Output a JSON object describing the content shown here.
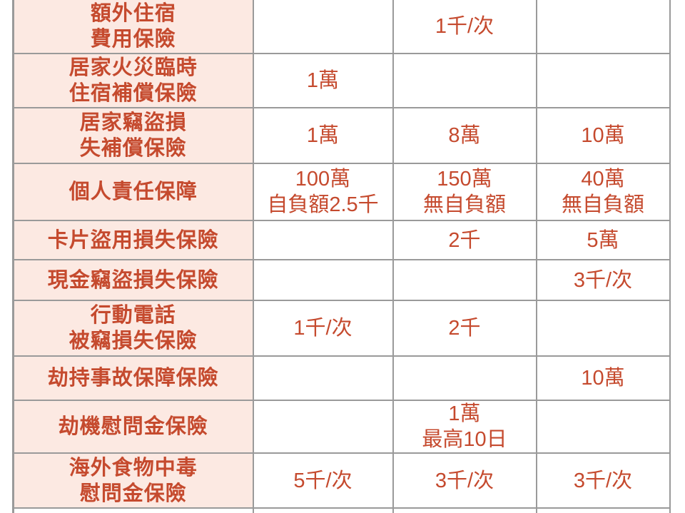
{
  "palette": {
    "label_cell_bg": "#fce9e2",
    "text_color": "#c54a2e",
    "border_color": "#9a9a9a",
    "page_bg": "#ffffff"
  },
  "table": {
    "rows": [
      {
        "label_lines": [
          "額外住宿",
          "費用保險"
        ],
        "values": [
          [],
          [
            "1千/次"
          ],
          []
        ]
      },
      {
        "label_lines": [
          "居家火災臨時",
          "住宿補償保險"
        ],
        "values": [
          [
            "1萬"
          ],
          [],
          []
        ]
      },
      {
        "label_lines": [
          "居家竊盜損",
          "失補償保險"
        ],
        "values": [
          [
            "1萬"
          ],
          [
            "8萬"
          ],
          [
            "10萬"
          ]
        ]
      },
      {
        "label_lines": [
          "個人責任保障"
        ],
        "values": [
          [
            "100萬",
            "自負額2.5千"
          ],
          [
            "150萬",
            "無自負額"
          ],
          [
            "40萬",
            "無自負額"
          ]
        ]
      },
      {
        "label_lines": [
          "卡片盜用損失保險"
        ],
        "values": [
          [],
          [
            "2千"
          ],
          [
            "5萬"
          ]
        ]
      },
      {
        "label_lines": [
          "現金竊盜損失保險"
        ],
        "values": [
          [],
          [],
          [
            "3千/次"
          ]
        ]
      },
      {
        "label_lines": [
          "行動電話",
          "被竊損失保險"
        ],
        "values": [
          [
            "1千/次"
          ],
          [
            "2千"
          ],
          []
        ]
      },
      {
        "label_lines": [
          "劫持事故保障保險"
        ],
        "values": [
          [],
          [],
          [
            "10萬"
          ]
        ]
      },
      {
        "label_lines": [
          "劫機慰問金保險"
        ],
        "values": [
          [],
          [
            "1萬",
            "最高10日"
          ],
          []
        ]
      },
      {
        "label_lines": [
          "海外食物中毒",
          "慰問金保險"
        ],
        "values": [
          [
            "5千/次"
          ],
          [
            "3千/次"
          ],
          [
            "3千/次"
          ]
        ]
      },
      {
        "label_lines": [],
        "values": [
          [],
          [],
          []
        ]
      }
    ]
  }
}
